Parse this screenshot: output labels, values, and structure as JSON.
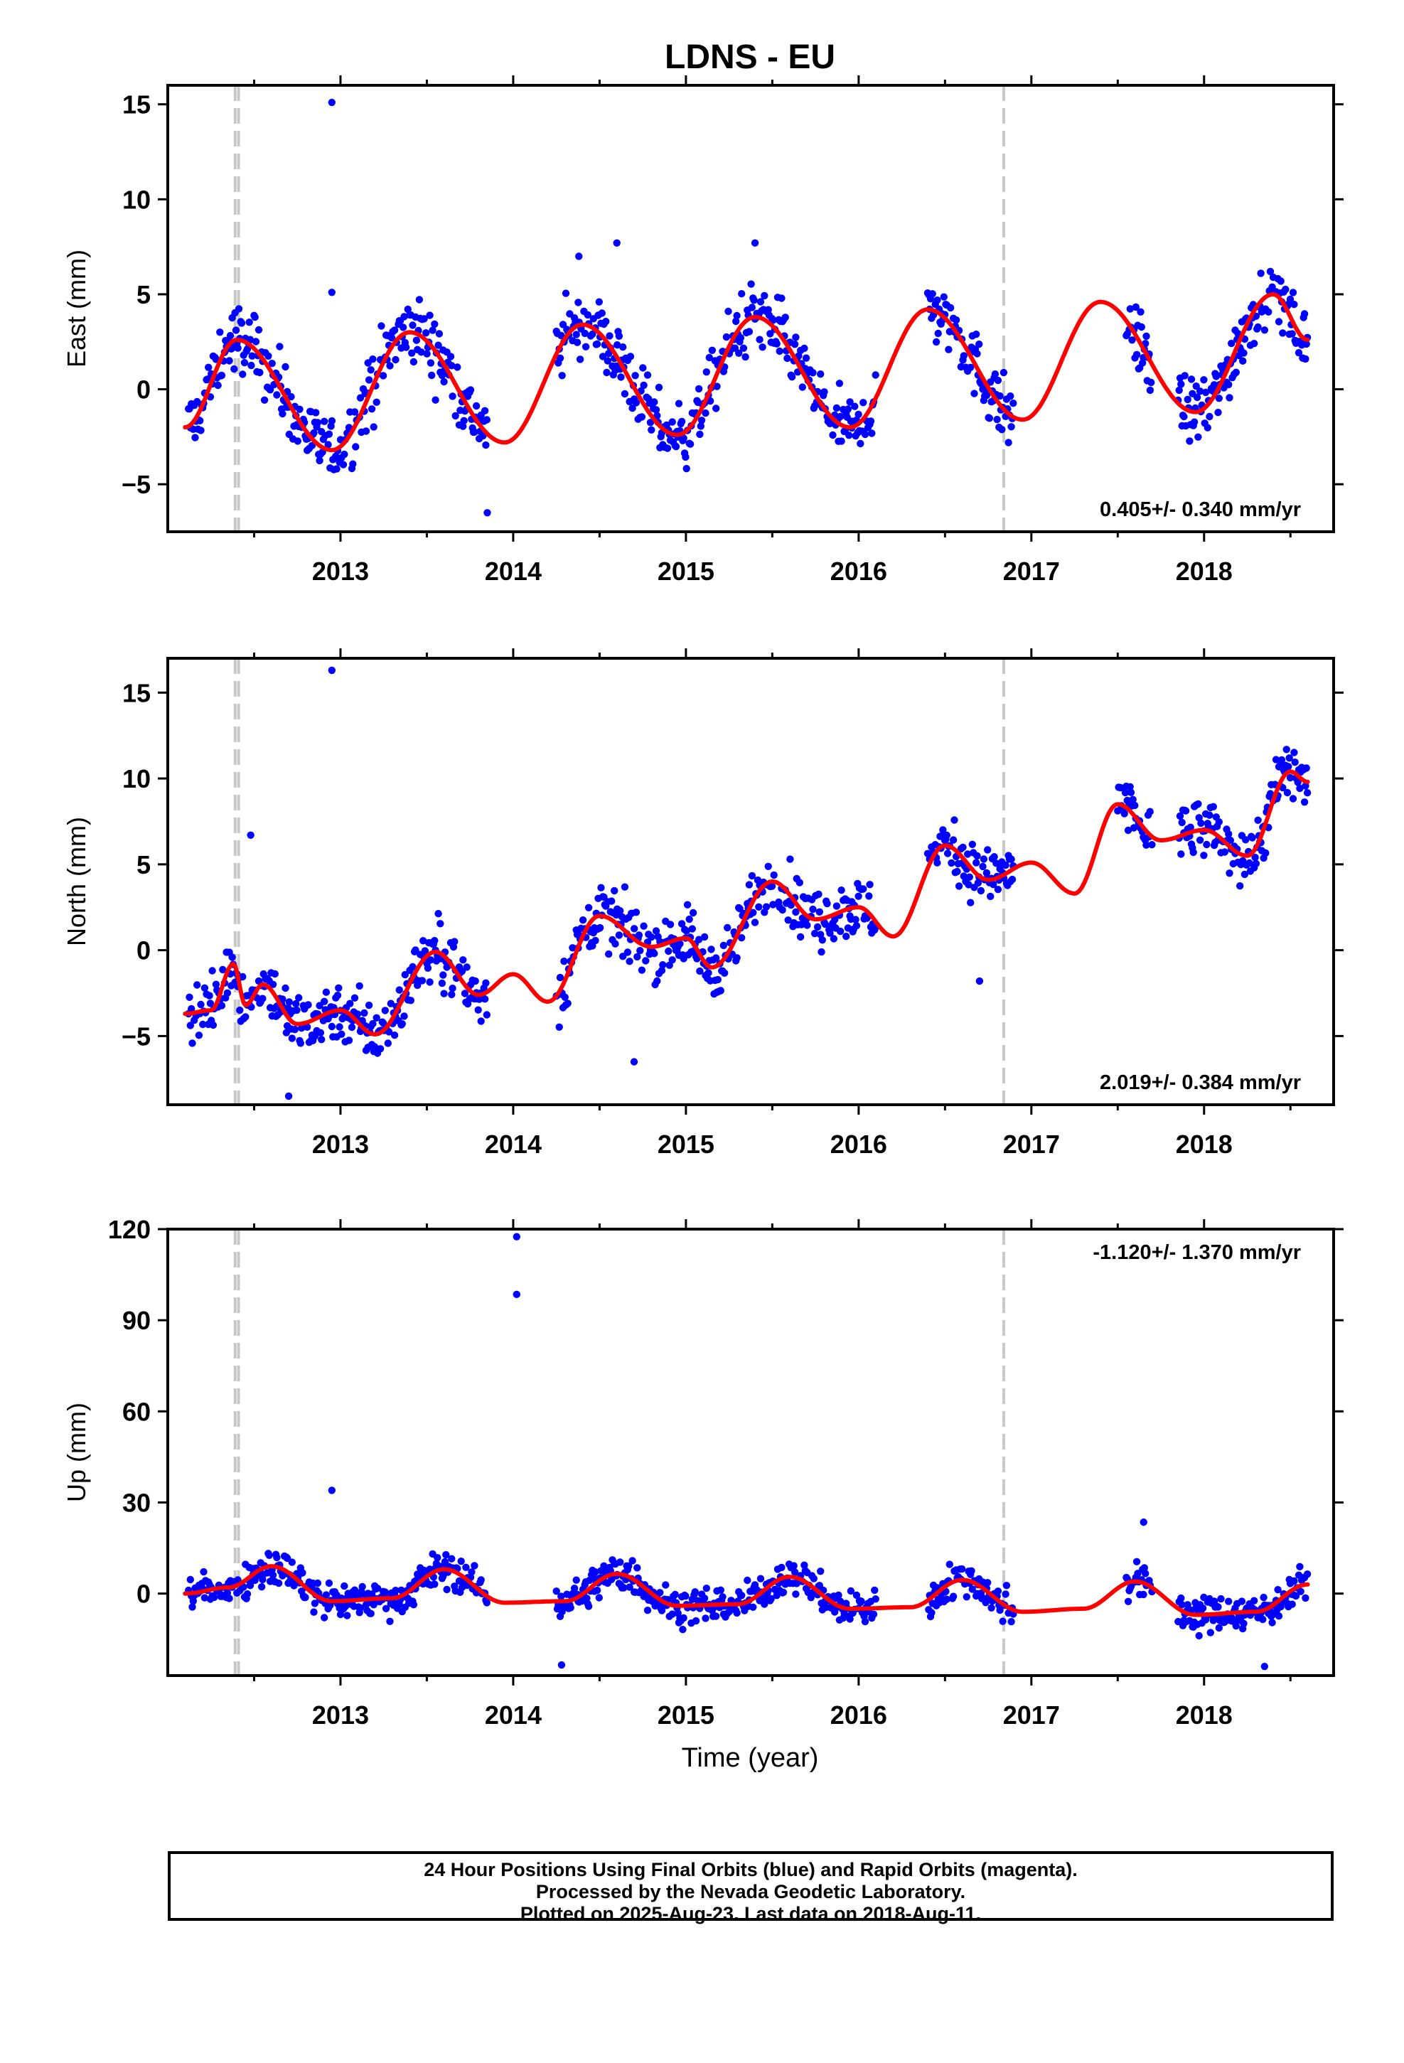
{
  "title": "LDNS - EU",
  "colors": {
    "data_points": "#0000ff",
    "model_fit": "#ff0000",
    "equipment_change_lines": "#c8c8c8",
    "frame": "#000000"
  },
  "x_axis": {
    "label": "Time (year)",
    "range": [
      2012.0,
      2018.75
    ],
    "ticks": [
      2013,
      2014,
      2015,
      2016,
      2017,
      2018
    ],
    "tick_labels": [
      "2013",
      "2014",
      "2015",
      "2016",
      "2017",
      "2018"
    ]
  },
  "vertical_markers": [
    2012.39,
    2012.41,
    2016.84
  ],
  "panels": [
    {
      "id": "east",
      "ylabel": "East (mm)",
      "ylim": [
        -7.5,
        16
      ],
      "yticks": [
        -5,
        0,
        5,
        10,
        15
      ],
      "ytick_labels": [
        "−5",
        "0",
        "5",
        "10",
        "15"
      ],
      "velocity": "0.405+/- 0.340 mm/yr"
    },
    {
      "id": "north",
      "ylabel": "North (mm)",
      "ylim": [
        -9,
        17
      ],
      "yticks": [
        -5,
        0,
        5,
        10,
        15
      ],
      "ytick_labels": [
        "−5",
        "0",
        "5",
        "10",
        "15"
      ],
      "velocity": "2.019+/- 0.384 mm/yr"
    },
    {
      "id": "up",
      "ylabel": "Up (mm)",
      "ylim": [
        -27,
        120
      ],
      "yticks": [
        0,
        30,
        60,
        90,
        120
      ],
      "ytick_labels": [
        "0",
        "30",
        "60",
        "90",
        "120"
      ],
      "velocity": "-1.120+/- 1.370 mm/yr"
    }
  ],
  "chart_data": [
    {
      "type": "scatter",
      "component": "East",
      "ylabel": "East (mm)",
      "ylim": [
        -7.5,
        16
      ],
      "velocity_label": "0.405+/- 0.340 mm/yr",
      "seasonal_fit": {
        "x": [
          2012.1,
          2012.4,
          2012.95,
          2013.4,
          2013.95,
          2014.4,
          2014.95,
          2015.4,
          2015.95,
          2016.4,
          2016.95,
          2017.4,
          2017.95,
          2018.4,
          2018.6
        ],
        "y": [
          -2.0,
          2.6,
          -3.2,
          3.0,
          -2.8,
          3.4,
          -2.4,
          3.8,
          -2.0,
          4.2,
          -1.6,
          4.6,
          -1.2,
          5.0,
          2.6
        ]
      },
      "data_segments": [
        [
          2012.12,
          2013.85
        ],
        [
          2014.25,
          2016.1
        ],
        [
          2016.4,
          2016.9
        ],
        [
          2017.55,
          2017.7
        ],
        [
          2017.85,
          2018.6
        ]
      ],
      "outliers": [
        {
          "x": 2012.95,
          "y": 15.1
        },
        {
          "x": 2012.95,
          "y": 5.1
        },
        {
          "x": 2013.85,
          "y": -6.5
        },
        {
          "x": 2014.38,
          "y": 7.0
        },
        {
          "x": 2014.6,
          "y": 7.7
        },
        {
          "x": 2015.4,
          "y": 7.7
        }
      ]
    },
    {
      "type": "scatter",
      "component": "North",
      "ylabel": "North (mm)",
      "ylim": [
        -9,
        17
      ],
      "velocity_label": "2.019+/- 0.384 mm/yr",
      "fit": {
        "x": [
          2012.1,
          2012.25,
          2012.38,
          2012.45,
          2012.55,
          2012.75,
          2013.0,
          2013.2,
          2013.55,
          2013.8,
          2014.0,
          2014.2,
          2014.5,
          2014.8,
          2015.0,
          2015.15,
          2015.5,
          2015.75,
          2016.0,
          2016.2,
          2016.5,
          2016.75,
          2017.0,
          2017.25,
          2017.5,
          2017.75,
          2018.0,
          2018.25,
          2018.5,
          2018.6
        ],
        "y": [
          -3.7,
          -3.5,
          -0.8,
          -3.2,
          -2.0,
          -4.3,
          -3.5,
          -4.9,
          -0.1,
          -2.6,
          -1.4,
          -3.0,
          2.0,
          0.2,
          0.7,
          -1.0,
          4.0,
          1.8,
          2.5,
          0.8,
          6.1,
          4.1,
          5.1,
          3.3,
          8.5,
          6.4,
          7.0,
          5.5,
          10.4,
          9.8
        ]
      },
      "data_segments": [
        [
          2012.12,
          2013.85
        ],
        [
          2014.25,
          2016.1
        ],
        [
          2016.4,
          2016.9
        ],
        [
          2017.5,
          2017.7
        ],
        [
          2017.85,
          2018.6
        ]
      ],
      "outliers": [
        {
          "x": 2012.95,
          "y": 16.3
        },
        {
          "x": 2012.48,
          "y": 6.7
        },
        {
          "x": 2012.7,
          "y": -8.5
        },
        {
          "x": 2014.7,
          "y": -6.5
        },
        {
          "x": 2016.7,
          "y": -1.8
        }
      ]
    },
    {
      "type": "scatter",
      "component": "Up",
      "ylabel": "Up (mm)",
      "ylim": [
        -27,
        120
      ],
      "velocity_label": "-1.120+/- 1.370 mm/yr",
      "seasonal_fit": {
        "x": [
          2012.1,
          2012.35,
          2012.6,
          2012.95,
          2013.3,
          2013.6,
          2013.95,
          2014.3,
          2014.6,
          2014.95,
          2015.3,
          2015.6,
          2015.95,
          2016.3,
          2016.6,
          2016.95,
          2017.3,
          2017.6,
          2017.95,
          2018.3,
          2018.6
        ],
        "y": [
          0.0,
          2.0,
          9.0,
          -2.5,
          -1.5,
          8.0,
          -3.0,
          -2.5,
          6.5,
          -4.0,
          -3.5,
          5.5,
          -5.0,
          -4.5,
          4.5,
          -6.0,
          -5.0,
          4.0,
          -7.0,
          -6.0,
          3.0
        ]
      },
      "data_segments": [
        [
          2012.12,
          2013.85
        ],
        [
          2014.25,
          2016.1
        ],
        [
          2016.4,
          2016.9
        ],
        [
          2017.55,
          2017.7
        ],
        [
          2017.85,
          2018.6
        ]
      ],
      "outliers": [
        {
          "x": 2014.02,
          "y": 117.5
        },
        {
          "x": 2014.02,
          "y": 98.5
        },
        {
          "x": 2012.95,
          "y": 34.0
        },
        {
          "x": 2017.65,
          "y": 23.5
        },
        {
          "x": 2014.28,
          "y": -23.5
        },
        {
          "x": 2018.35,
          "y": -24.0
        }
      ]
    }
  ],
  "footer": {
    "line1": "24 Hour Positions Using Final Orbits (blue) and Rapid Orbits (magenta).",
    "line2": "Processed by the Nevada Geodetic Laboratory.",
    "line3": "Plotted on 2025-Aug-23. Last data on 2018-Aug-11."
  }
}
